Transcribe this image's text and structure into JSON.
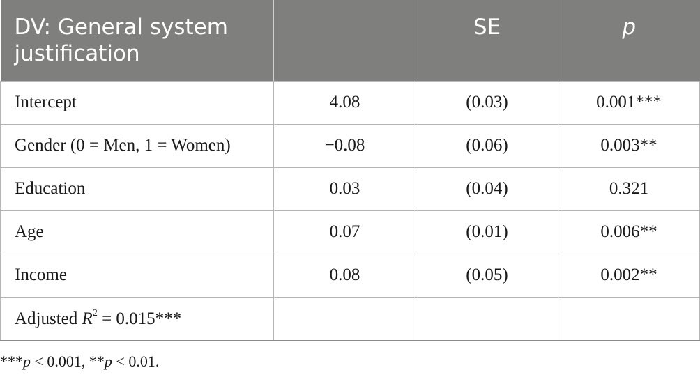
{
  "table": {
    "headers": {
      "col1": "DV: General system justification",
      "col2": "",
      "col3": "SE",
      "col4": "p"
    },
    "rows": [
      {
        "label": "Intercept",
        "coef": "4.08",
        "se": "(0.03)",
        "p": "0.001***"
      },
      {
        "label": "Gender (0 = Men, 1 = Women)",
        "coef": "−0.08",
        "se": "(0.06)",
        "p": "0.003**"
      },
      {
        "label": "Education",
        "coef": "0.03",
        "se": "(0.04)",
        "p": "0.321"
      },
      {
        "label": "Age",
        "coef": "0.07",
        "se": "(0.01)",
        "p": "0.006**"
      },
      {
        "label": "Income",
        "coef": "0.08",
        "se": "(0.05)",
        "p": "0.002**"
      }
    ],
    "adjusted_r2": {
      "prefix": "Adjusted ",
      "symbol": "R",
      "exponent": "2",
      "value": " = 0.015***"
    }
  },
  "footnote": {
    "part1_stars": "***",
    "part1_p": "p",
    "part1_rest": " < 0.001, **",
    "part2_p": "p",
    "part2_rest": " < 0.01."
  },
  "colors": {
    "header_bg": "#7f7f7d",
    "header_text": "#ffffff",
    "grid": "#b5b5b5"
  }
}
